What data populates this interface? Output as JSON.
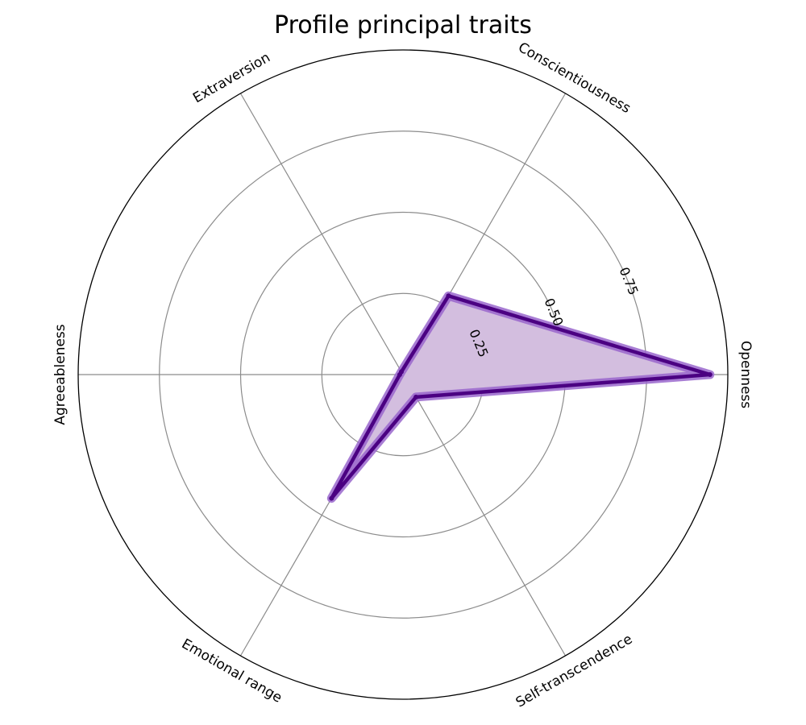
{
  "chart_data": {
    "type": "radar",
    "title": "Profile principal traits",
    "categories": [
      "Openness",
      "Conscientiousness",
      "Extraversion",
      "Agreeableness",
      "Emotional range",
      "Self-transcendence"
    ],
    "values": [
      0.945,
      0.28,
      0.01,
      0.01,
      0.44,
      0.08
    ],
    "rlim": [
      0,
      1
    ],
    "radial_ticks": [
      0.25,
      0.5,
      0.75
    ],
    "radial_tick_labels": [
      "0.25",
      "0.50",
      "0.75"
    ],
    "grid": true,
    "colors": {
      "line": "#4b0082",
      "line_glow": "#9966cc",
      "fill": "#d3bedf",
      "grid": "#8c8c8c",
      "outer_frame": "#000000"
    }
  }
}
